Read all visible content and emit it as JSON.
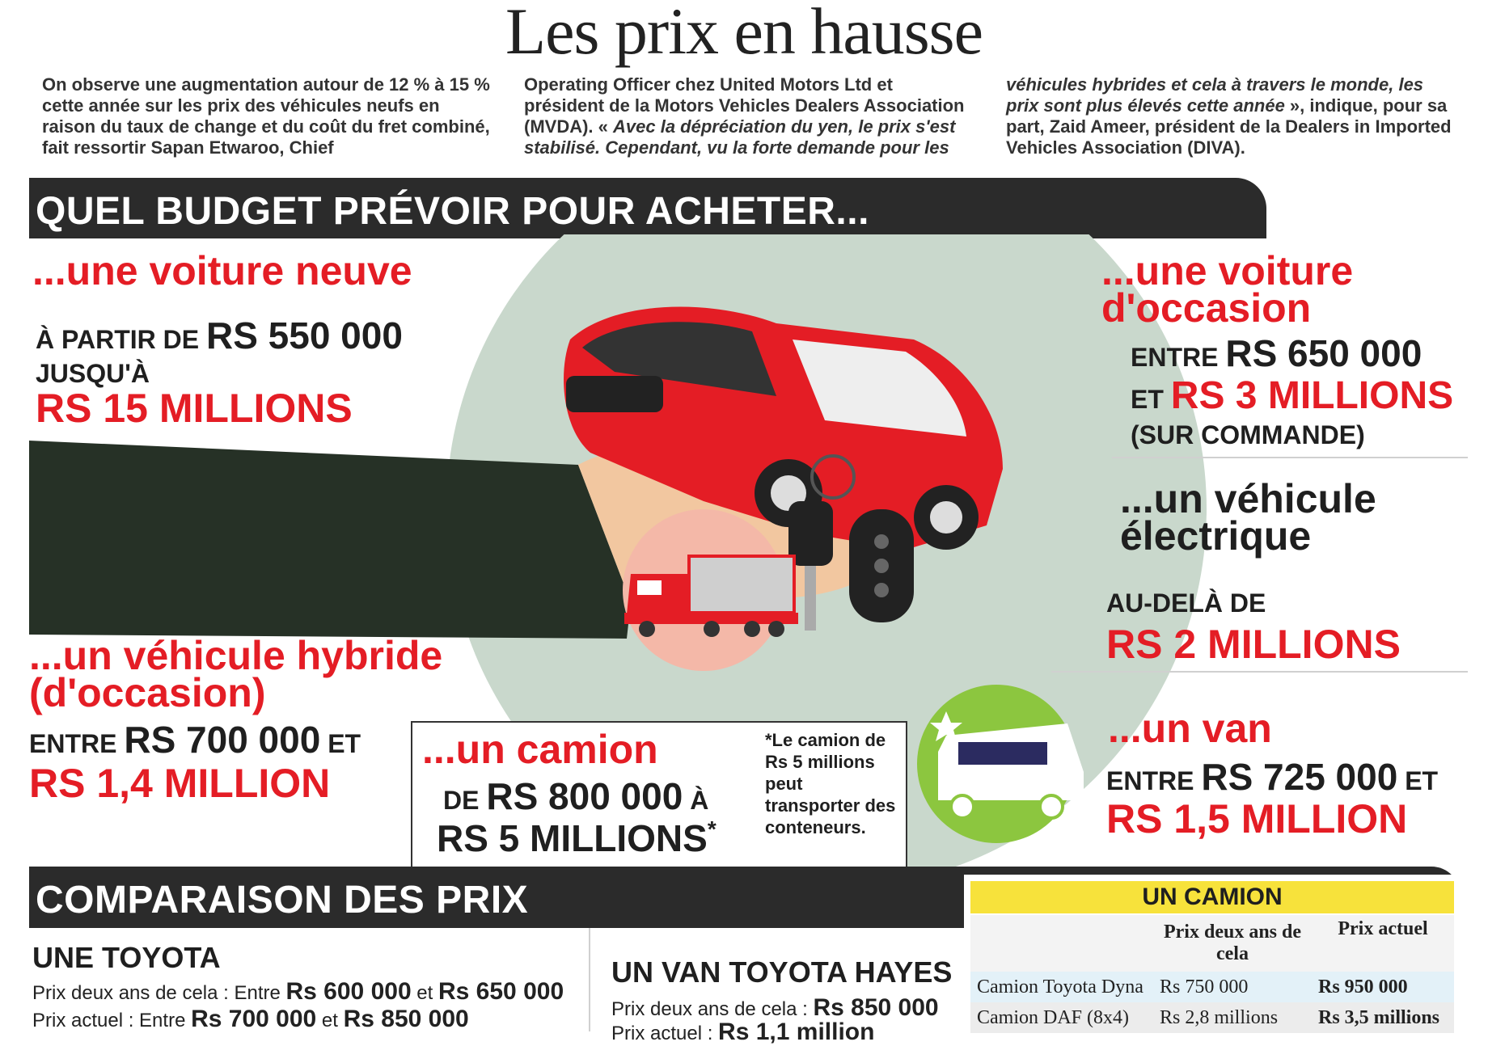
{
  "title": "Les prix en hausse",
  "intro": {
    "col1": "On observe une augmentation autour de 12 % à 15 % cette année sur les prix des véhicules neufs en raison du taux de change et du coût du fret combiné, fait ressortir Sapan Etwaroo, Chief",
    "col2_a": "Operating Officer chez United Motors Ltd et président de la Motors Vehicles Dealers Association (MVDA). « ",
    "col2_b": "Avec la dépréciation du yen, le prix s'est stabilisé. Cependant, vu la forte demande pour les",
    "col3_a": "véhicules hybrides et cela à travers le monde, les prix sont plus élevés cette année",
    "col3_b": " », indique, pour sa part, Zaid Ameer, président de la Dealers in Imported Vehicles Association (DIVA)."
  },
  "budget_header": "QUEL BUDGET PRÉVOIR POUR ACHETER...",
  "new_car": {
    "heading": "...une voiture neuve",
    "from_label": "À PARTIR DE",
    "from_value": "RS 550 000",
    "to_label": "JUSQU'À",
    "to_value": "RS 15 MILLIONS"
  },
  "used_car": {
    "heading_1": "...une voiture",
    "heading_2": "d'occasion",
    "between_label": "ENTRE",
    "low": "RS 650 000",
    "and_label": "ET",
    "high": "RS 3 MILLIONS",
    "note": "(SUR COMMANDE)"
  },
  "electric": {
    "heading_1": "...un véhicule",
    "heading_2": "électrique",
    "label": "AU-DELÀ DE",
    "value": "RS 2 MILLIONS"
  },
  "hybrid": {
    "heading_1": "...un véhicule hybride",
    "heading_2": "(d'occasion)",
    "between_label": "ENTRE",
    "low": "RS 700 000",
    "and_label": "ET",
    "high": "RS 1,4 MILLION"
  },
  "truck": {
    "heading": "...un camion",
    "from_label": "DE",
    "low": "RS 800 000",
    "to_label": "À",
    "high": "RS 5 MILLIONS",
    "star": "*",
    "footnote": "*Le camion de Rs 5 millions peut transporter des conteneurs."
  },
  "van": {
    "heading": "...un van",
    "between_label": "ENTRE",
    "low": "RS 725 000",
    "and_label": "ET",
    "high": "RS 1,5 MILLION"
  },
  "comparison_header": "COMPARAISON DES PRIX",
  "toyota": {
    "heading": "UNE TOYOTA",
    "row1_label": "Prix deux ans de cela : Entre ",
    "row1_low": "Rs 600 000",
    "row1_and": " et ",
    "row1_high": "Rs 650 000",
    "row2_label": "Prix actuel :  Entre ",
    "row2_low": "Rs 700 000",
    "row2_and": " et ",
    "row2_high": "Rs 850 000"
  },
  "van_hayes": {
    "heading": "UN VAN TOYOTA HAYES",
    "row1_label": "Prix deux ans de cela : ",
    "row1_value": "Rs 850 000",
    "row2_label": "Prix actuel : ",
    "row2_value": "Rs 1,1 million"
  },
  "camion_table": {
    "title": "UN CAMION",
    "col_prev": "Prix deux ans de cela",
    "col_now": "Prix actuel",
    "rows": [
      {
        "name": "Camion Toyota Dyna",
        "prev": "Rs 750 000",
        "now": "Rs 950 000"
      },
      {
        "name": "Camion DAF (8x4)",
        "prev": "Rs 2,8 millions",
        "now": "Rs 3,5 millions"
      }
    ]
  },
  "colors": {
    "red": "#e41d25",
    "band": "#2b2b2b",
    "yellow": "#f7e23b",
    "green": "#8cc63f",
    "circle": "#c9d8cc"
  },
  "icons": [
    "car-in-hand-illustration",
    "car-key-icon",
    "truck-icon",
    "van-icon"
  ]
}
